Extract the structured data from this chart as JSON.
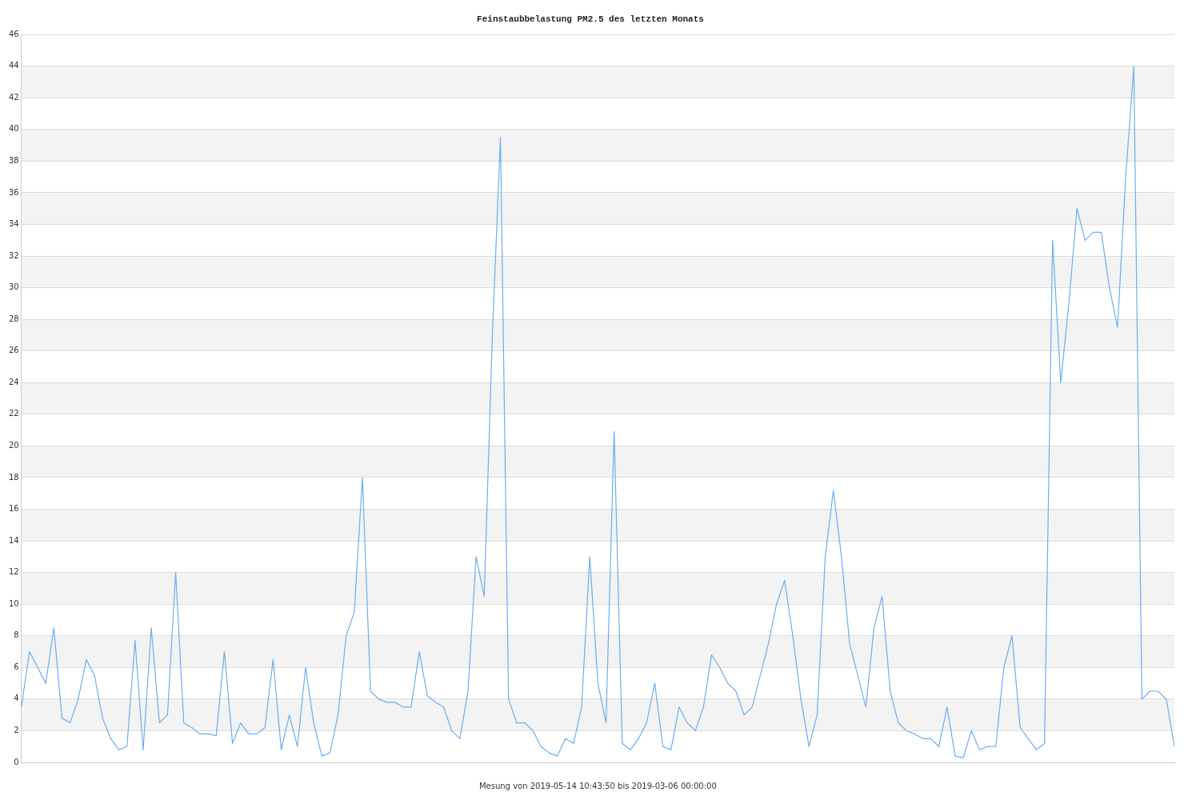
{
  "chart_data": {
    "type": "line",
    "title": "Feinstaubbelastung PM2.5 des letzten Monats",
    "xlabel": "Mesung von 2019-05-14 10:43:50 bis 2019-03-06 00:00:00",
    "categories": [
      null,
      null,
      null,
      null,
      null,
      null,
      null,
      null,
      null,
      null,
      null,
      null,
      null,
      null,
      null,
      null,
      null,
      null,
      null,
      null,
      null,
      null,
      null,
      null,
      null,
      null,
      null,
      null,
      null,
      null,
      null,
      null,
      null,
      null,
      null,
      null,
      null,
      null,
      null,
      null,
      null,
      null,
      null,
      null,
      null,
      null,
      null,
      null,
      null,
      null,
      null,
      null,
      null,
      null,
      null,
      null,
      null,
      null,
      null,
      null,
      null,
      null,
      null,
      null,
      null,
      null,
      null,
      null,
      null,
      null,
      null,
      null,
      null,
      null,
      null,
      null,
      null,
      null,
      null,
      null,
      null,
      null,
      null,
      null,
      null,
      null,
      null,
      null,
      null,
      null,
      null,
      null,
      null,
      null,
      null,
      null,
      null,
      null,
      null,
      null,
      null,
      null,
      null,
      null,
      null,
      null,
      null,
      null,
      null,
      null,
      null,
      null,
      null,
      null,
      null,
      null,
      null,
      null,
      null,
      null,
      null,
      null,
      null,
      null,
      null,
      null,
      null,
      null,
      null,
      null,
      null,
      null,
      null,
      null,
      null,
      null,
      null,
      null,
      null,
      null,
      null,
      null,
      null
    ],
    "series": [
      {
        "color": "#6aaef0",
        "values": [
          3.5,
          7,
          6,
          5,
          8.5,
          2.8,
          2.5,
          4,
          6.5,
          5.5,
          2.8,
          1.5,
          0.8,
          1,
          7.7,
          0.8,
          8.5,
          2.5,
          3,
          12,
          2.5,
          2.2,
          1.8,
          1.8,
          1.7,
          7,
          1.2,
          2.5,
          1.8,
          1.8,
          2.2,
          6.5,
          0.8,
          3,
          1,
          6,
          2.5,
          0.4,
          0.6,
          3,
          8,
          9.5,
          18,
          4.5,
          4,
          3.8,
          3.8,
          3.5,
          3.5,
          7,
          4.2,
          3.8,
          3.5,
          2,
          1.5,
          4.5,
          13,
          10.5,
          27,
          39.5,
          4,
          2.5,
          2.5,
          2,
          1,
          0.6,
          0.4,
          1.5,
          1.2,
          3.5,
          13,
          5,
          2.5,
          20.9,
          1.2,
          0.8,
          1.5,
          2.5,
          5,
          1,
          0.8,
          3.5,
          2.5,
          2,
          3.5,
          6.8,
          6,
          5,
          4.5,
          3,
          3.5,
          5.5,
          7.5,
          10,
          11.5,
          8,
          4,
          1,
          3,
          13,
          17.2,
          13,
          7.5,
          5.5,
          3.5,
          8.5,
          10.5,
          4.5,
          2.5,
          2,
          1.8,
          1.5,
          1.5,
          1,
          3.5,
          0.4,
          0.3,
          2,
          0.8,
          1,
          1,
          6,
          8,
          2.2,
          1.5,
          0.8,
          1.2,
          33,
          24,
          29,
          35,
          33,
          33.5,
          33.5,
          30,
          27.5,
          37,
          44,
          4,
          4.5,
          4.5,
          4,
          1
        ]
      }
    ],
    "ylim": [
      0,
      46
    ],
    "yticks": [
      0,
      2,
      4,
      6,
      8,
      10,
      12,
      14,
      16,
      18,
      20,
      22,
      24,
      26,
      28,
      30,
      32,
      34,
      36,
      38,
      40,
      42,
      44,
      46
    ],
    "grid": "y",
    "tick_labels": "y",
    "legend": false,
    "marker": "none",
    "line_style": "solid"
  }
}
